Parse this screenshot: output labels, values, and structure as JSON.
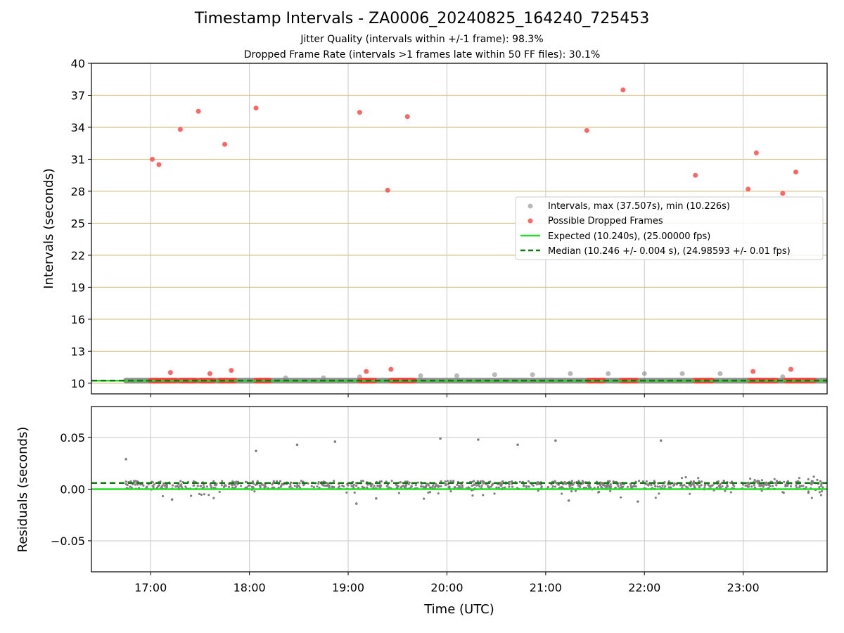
{
  "title": "Timestamp Intervals - ZA0006_20240825_164240_725453",
  "subtitle_1": "Jitter Quality (intervals within +/-1 frame): 98.3%",
  "subtitle_2": "Dropped Frame Rate (intervals >1 frames late within 50 FF files): 30.1%",
  "colors": {
    "interval_points": "#808080",
    "dropped_points": "#ff4040",
    "expected_line": "#22dd22",
    "median_line": "#117711",
    "h_grid_top": "#d4c48a",
    "grid": "#c8c8c8"
  },
  "chart_data": [
    {
      "type": "scatter",
      "name": "intervals",
      "ylabel": "Intervals (seconds)",
      "ylim": [
        9,
        40
      ],
      "yticks": [
        10,
        13,
        16,
        19,
        22,
        25,
        28,
        31,
        34,
        37,
        40
      ],
      "xlim_hours": [
        16.4,
        23.85
      ],
      "xticks": [
        "17:00",
        "18:00",
        "19:00",
        "20:00",
        "21:00",
        "22:00",
        "23:00"
      ],
      "grid": "horizontal (tan) and vertical (gray)",
      "legend_position": "center-right",
      "legend": [
        "Intervals, max (37.507s), min (10.226s)",
        "Possible Dropped Frames",
        "Expected (10.240s), (25.00000 fps)",
        "Median (10.246 +/- 0.004 s), (24.98593 +/- 0.01 fps)"
      ],
      "expected_value": 10.24,
      "median_value": 10.246,
      "interval_baseline": {
        "x_start": "16:45",
        "x_end": "23:50",
        "y": 10.246
      },
      "interval_outliers": {
        "x": [
          "18:22",
          "18:45",
          "19:07",
          "19:44",
          "20:06",
          "20:29",
          "20:52",
          "21:15",
          "21:38",
          "22:00",
          "22:23",
          "22:46",
          "23:24"
        ],
        "y": [
          10.5,
          10.5,
          10.6,
          10.7,
          10.7,
          10.8,
          10.8,
          10.9,
          10.9,
          10.9,
          10.9,
          10.9,
          10.6
        ]
      },
      "dropped_outliers": {
        "x": [
          "17:01",
          "17:05",
          "17:12",
          "17:18",
          "17:29",
          "17:36",
          "17:45",
          "17:49",
          "18:04",
          "19:07",
          "19:11",
          "19:24",
          "19:26",
          "19:36",
          "21:25",
          "21:47",
          "22:31",
          "23:03",
          "23:06",
          "23:08",
          "23:24",
          "23:29",
          "23:32"
        ],
        "y": [
          31.0,
          30.5,
          11.0,
          33.8,
          35.5,
          10.9,
          32.4,
          11.2,
          35.8,
          35.4,
          11.1,
          28.1,
          11.3,
          35.0,
          33.7,
          37.5,
          29.5,
          28.2,
          11.1,
          31.6,
          27.8,
          11.3,
          29.8
        ]
      },
      "dropped_clusters": [
        {
          "start": "17:00",
          "end": "17:15"
        },
        {
          "start": "17:18",
          "end": "17:27"
        },
        {
          "start": "17:30",
          "end": "17:38"
        },
        {
          "start": "17:42",
          "end": "17:51"
        },
        {
          "start": "18:04",
          "end": "18:12"
        },
        {
          "start": "19:07",
          "end": "19:16"
        },
        {
          "start": "19:26",
          "end": "19:40"
        },
        {
          "start": "21:26",
          "end": "21:35"
        },
        {
          "start": "21:46",
          "end": "21:55"
        },
        {
          "start": "22:31",
          "end": "22:41"
        },
        {
          "start": "23:04",
          "end": "23:20"
        },
        {
          "start": "23:26",
          "end": "23:43"
        }
      ]
    },
    {
      "type": "scatter",
      "name": "residuals",
      "xlabel": "Time (UTC)",
      "ylabel": "Residuals (seconds)",
      "ylim": [
        -0.08,
        0.08
      ],
      "yticks": [
        -0.05,
        0.0,
        0.05
      ],
      "ytick_labels": [
        "−0.05",
        "0.00",
        "0.05"
      ],
      "xlim_hours": [
        16.4,
        23.85
      ],
      "xticks": [
        "17:00",
        "18:00",
        "19:00",
        "20:00",
        "21:00",
        "22:00",
        "23:00"
      ],
      "expected_value": 0.0,
      "median_value": 0.006,
      "main_band": {
        "x_start": "16:45",
        "x_end": "23:50",
        "y_low": 0.0,
        "y_high": 0.008
      },
      "outliers": {
        "x": [
          "16:45",
          "18:04",
          "18:29",
          "18:52",
          "19:56",
          "20:19",
          "20:43",
          "21:06",
          "22:10",
          "19:05",
          "21:14",
          "21:56",
          "17:13",
          "19:17"
        ],
        "y": [
          0.029,
          0.037,
          0.043,
          0.046,
          0.049,
          0.048,
          0.043,
          0.047,
          0.047,
          -0.014,
          -0.011,
          -0.012,
          -0.01,
          -0.009
        ]
      }
    }
  ]
}
